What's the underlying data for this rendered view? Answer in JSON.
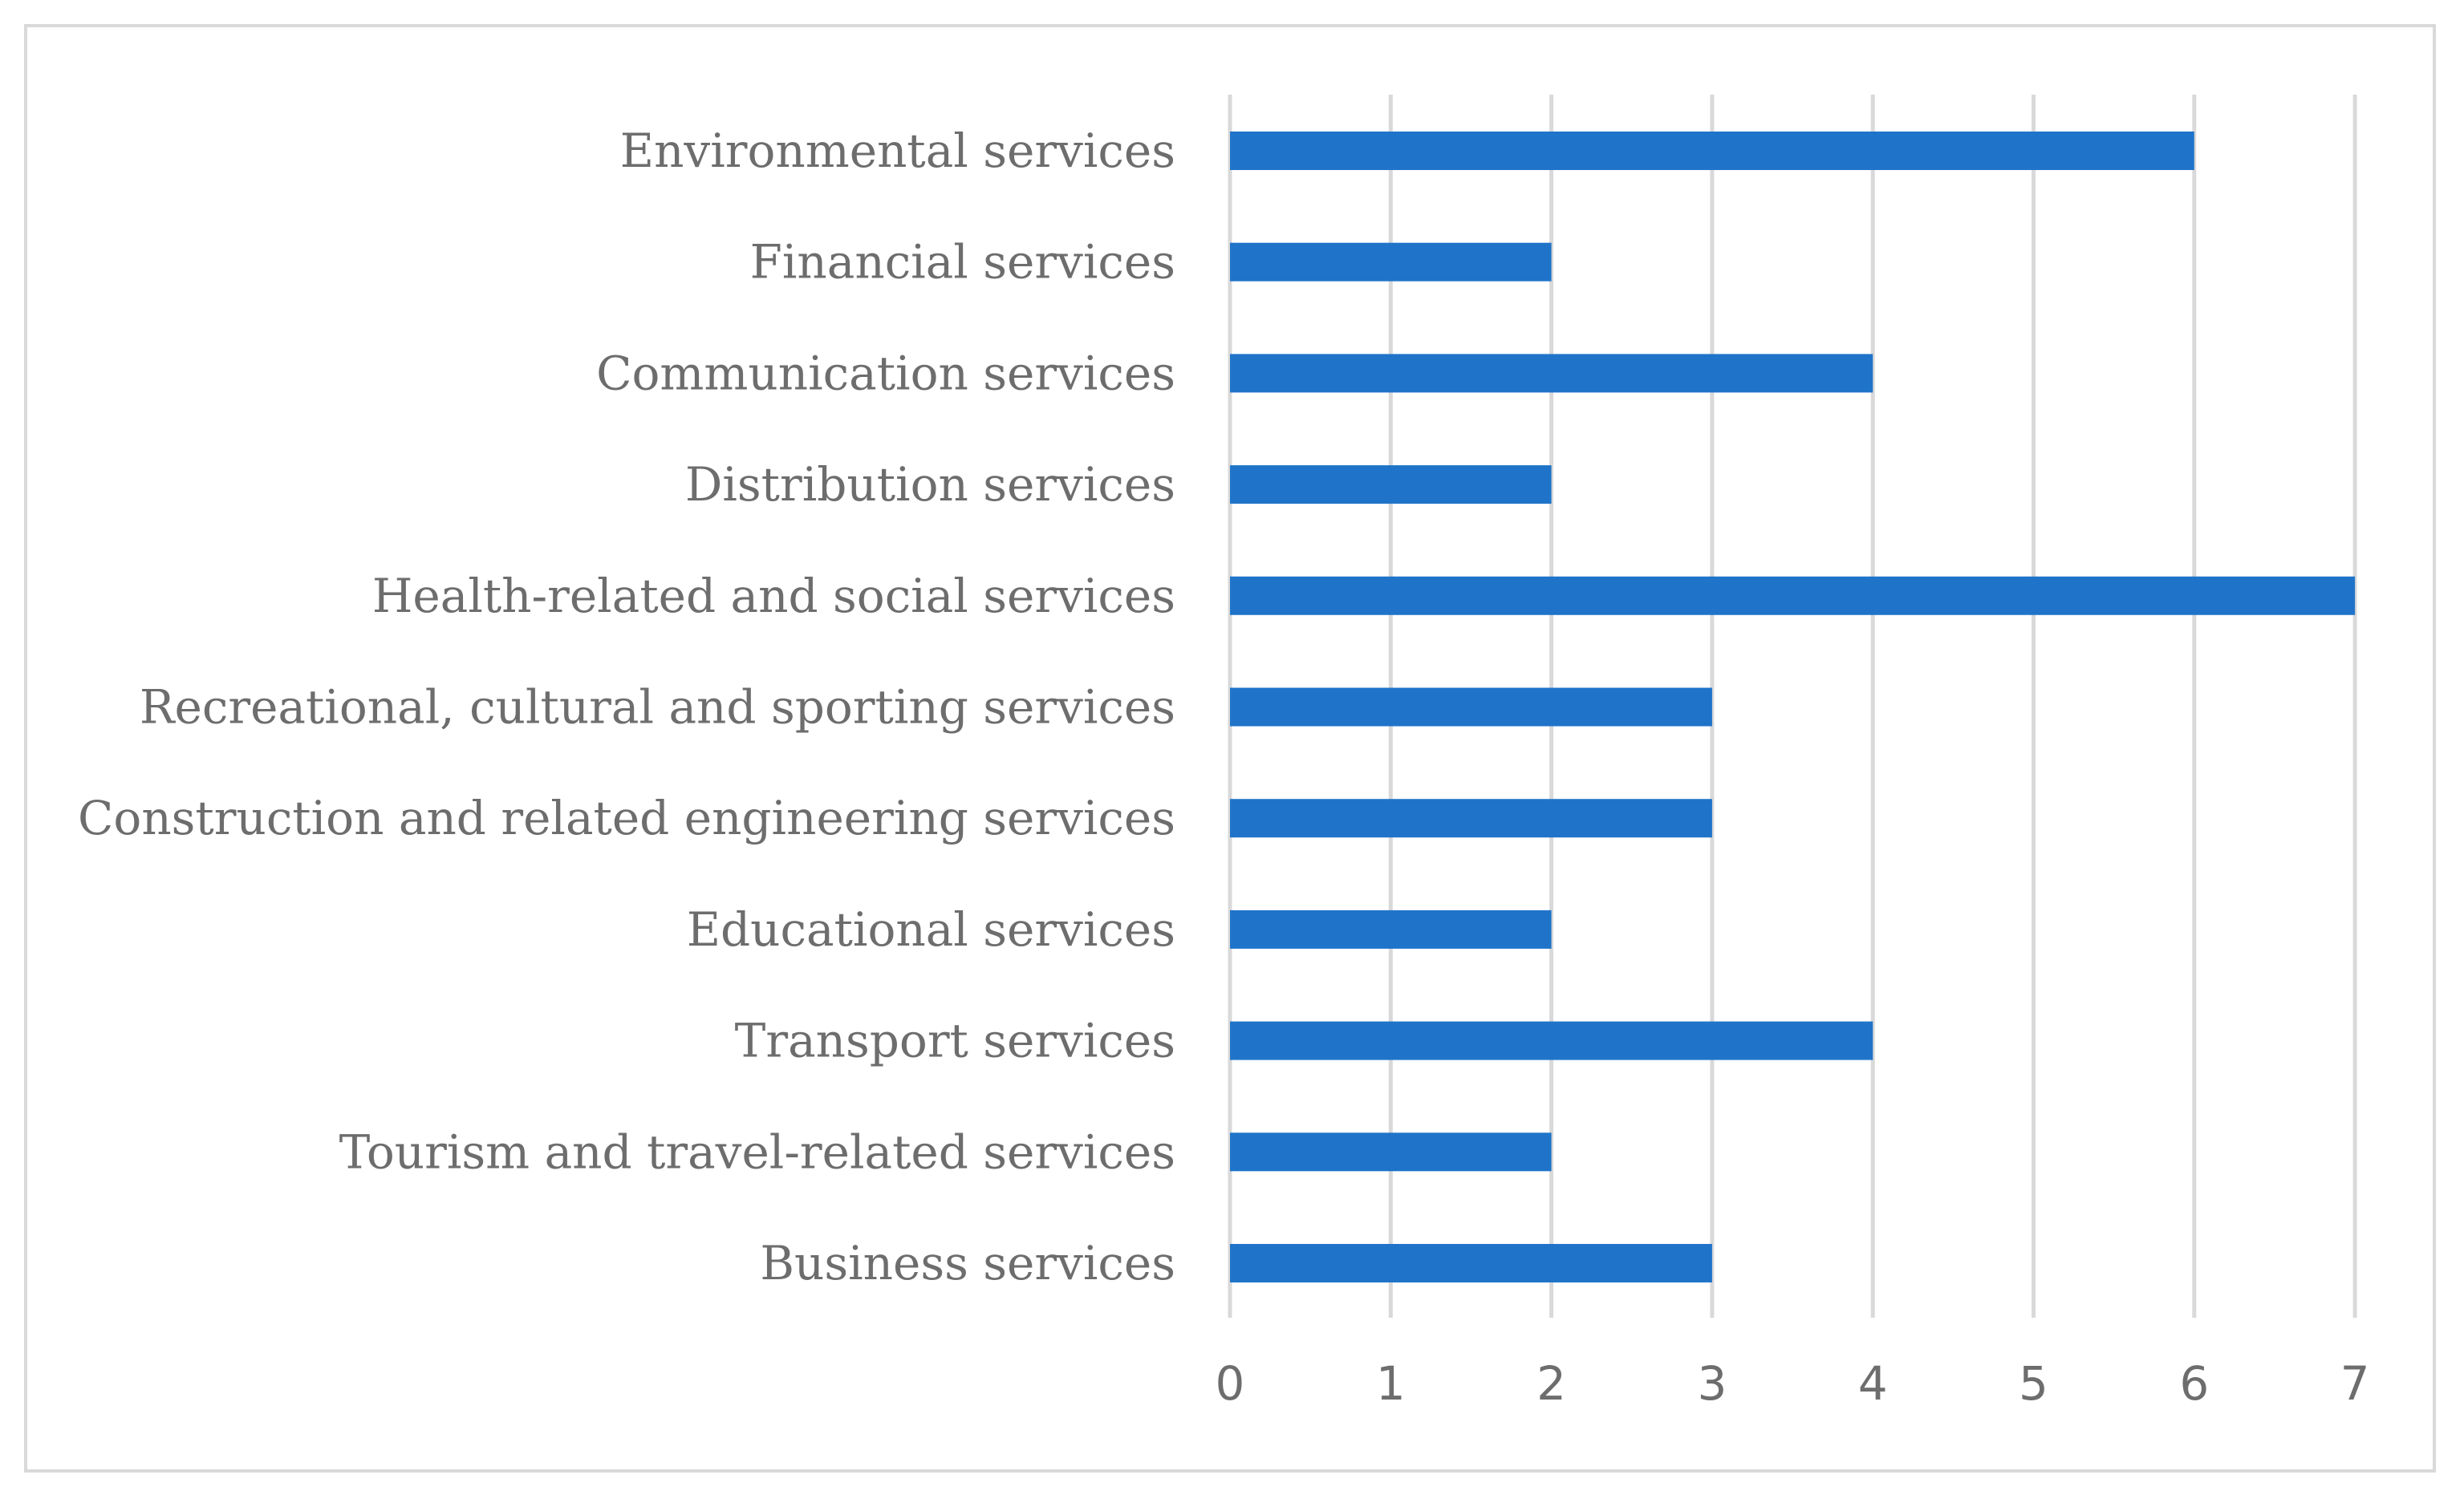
{
  "chart_data": {
    "type": "bar",
    "orientation": "horizontal",
    "title": "",
    "xlabel": "",
    "ylabel": "",
    "categories": [
      "Environmental services",
      "Financial services",
      "Communication services",
      "Distribution services",
      "Health-related and social services",
      "Recreational, cultural and sporting services",
      "Construction and related engineering services",
      "Educational services",
      "Transport services",
      "Tourism and travel-related services",
      "Business services"
    ],
    "values": [
      6,
      2,
      4,
      2,
      7,
      3,
      3,
      2,
      4,
      2,
      3
    ],
    "xlim": [
      0,
      7
    ],
    "ticks": [
      "0",
      "1",
      "2",
      "3",
      "4",
      "5",
      "6",
      "7"
    ],
    "grid": "vertical",
    "legend": "none",
    "bar_color": "#1f74c9",
    "grid_color": "#d9d9d9",
    "label_color": "#6d6d6d"
  }
}
